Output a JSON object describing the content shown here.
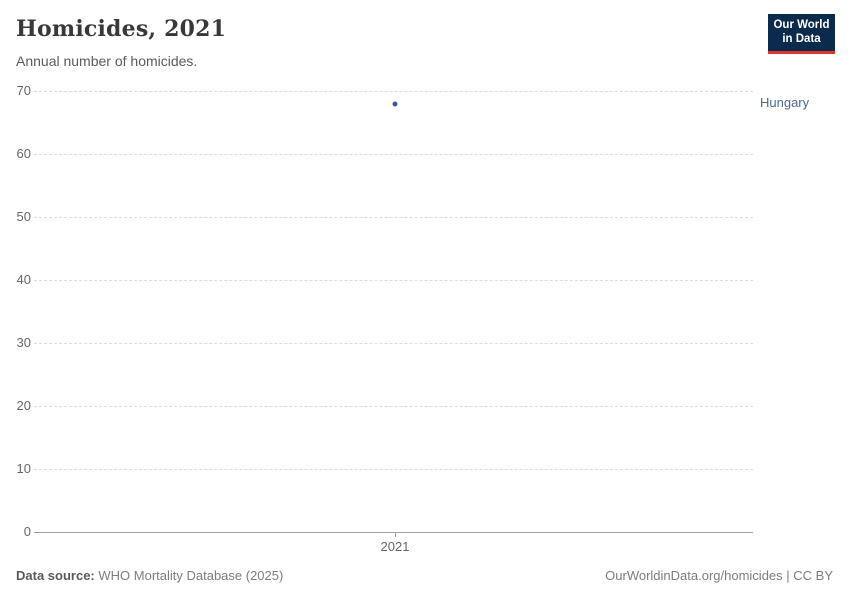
{
  "header": {
    "title": "Homicides, 2021",
    "subtitle": "Annual number of homicides.",
    "logo": {
      "line1": "Our World",
      "line2": "in Data"
    }
  },
  "chart_data": {
    "type": "scatter",
    "title": "Homicides, 2021",
    "subtitle": "Annual number of homicides.",
    "series": [
      {
        "name": "Hungary",
        "x": [
          2021
        ],
        "values": [
          68
        ]
      }
    ],
    "x_ticks": [
      "2021"
    ],
    "y_ticks": [
      0,
      10,
      20,
      30,
      40,
      50,
      60,
      70
    ],
    "ylim": [
      0,
      70
    ],
    "xlabel": "",
    "ylabel": "",
    "grid": "horizontal-dashed",
    "legend_position": "right-of-point",
    "point_color": "#3d5a8c",
    "entity_label_color": "#4c6a9c"
  },
  "footer": {
    "source_label": "Data source:",
    "source_value": "WHO Mortality Database (2025)",
    "license": "OurWorldinData.org/homicides | CC BY"
  }
}
